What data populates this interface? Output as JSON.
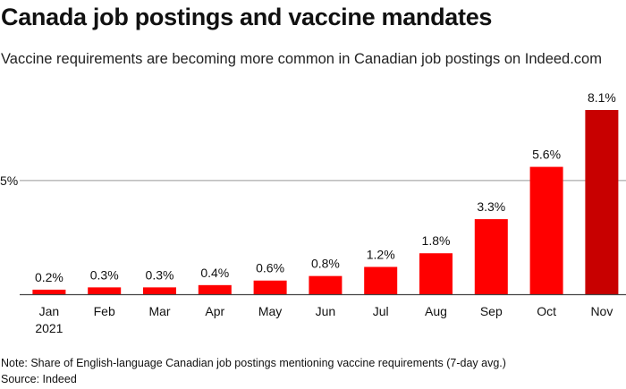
{
  "title": "Canada job postings and vaccine mandates",
  "subtitle": "Vaccine requirements are becoming more common in Canadian job postings on Indeed.com",
  "note": "Note: Share of English-language Canadian job postings mentioning vaccine requirements (7-day avg.)",
  "source": "Source: Indeed",
  "chart_data": {
    "type": "bar",
    "categories": [
      "Jan",
      "Feb",
      "Mar",
      "Apr",
      "May",
      "Jun",
      "Jul",
      "Aug",
      "Sep",
      "Oct",
      "Nov"
    ],
    "category_sublabels": [
      "2021",
      "",
      "",
      "",
      "",
      "",
      "",
      "",
      "",
      "",
      ""
    ],
    "values": [
      0.2,
      0.3,
      0.3,
      0.4,
      0.6,
      0.8,
      1.2,
      1.8,
      3.3,
      5.6,
      8.1
    ],
    "data_labels": [
      "0.2%",
      "0.3%",
      "0.3%",
      "0.4%",
      "0.6%",
      "0.8%",
      "1.2%",
      "1.8%",
      "3.3%",
      "5.6%",
      "8.1%"
    ],
    "yticks": [
      {
        "value": 5,
        "label": "5%"
      }
    ],
    "ylim": [
      0,
      8.1
    ],
    "grid": true,
    "colors": {
      "bar": "#ff0000",
      "highlight": "#c80000",
      "grid": "#999999",
      "axis": "#444444"
    },
    "highlight_index": 10
  }
}
